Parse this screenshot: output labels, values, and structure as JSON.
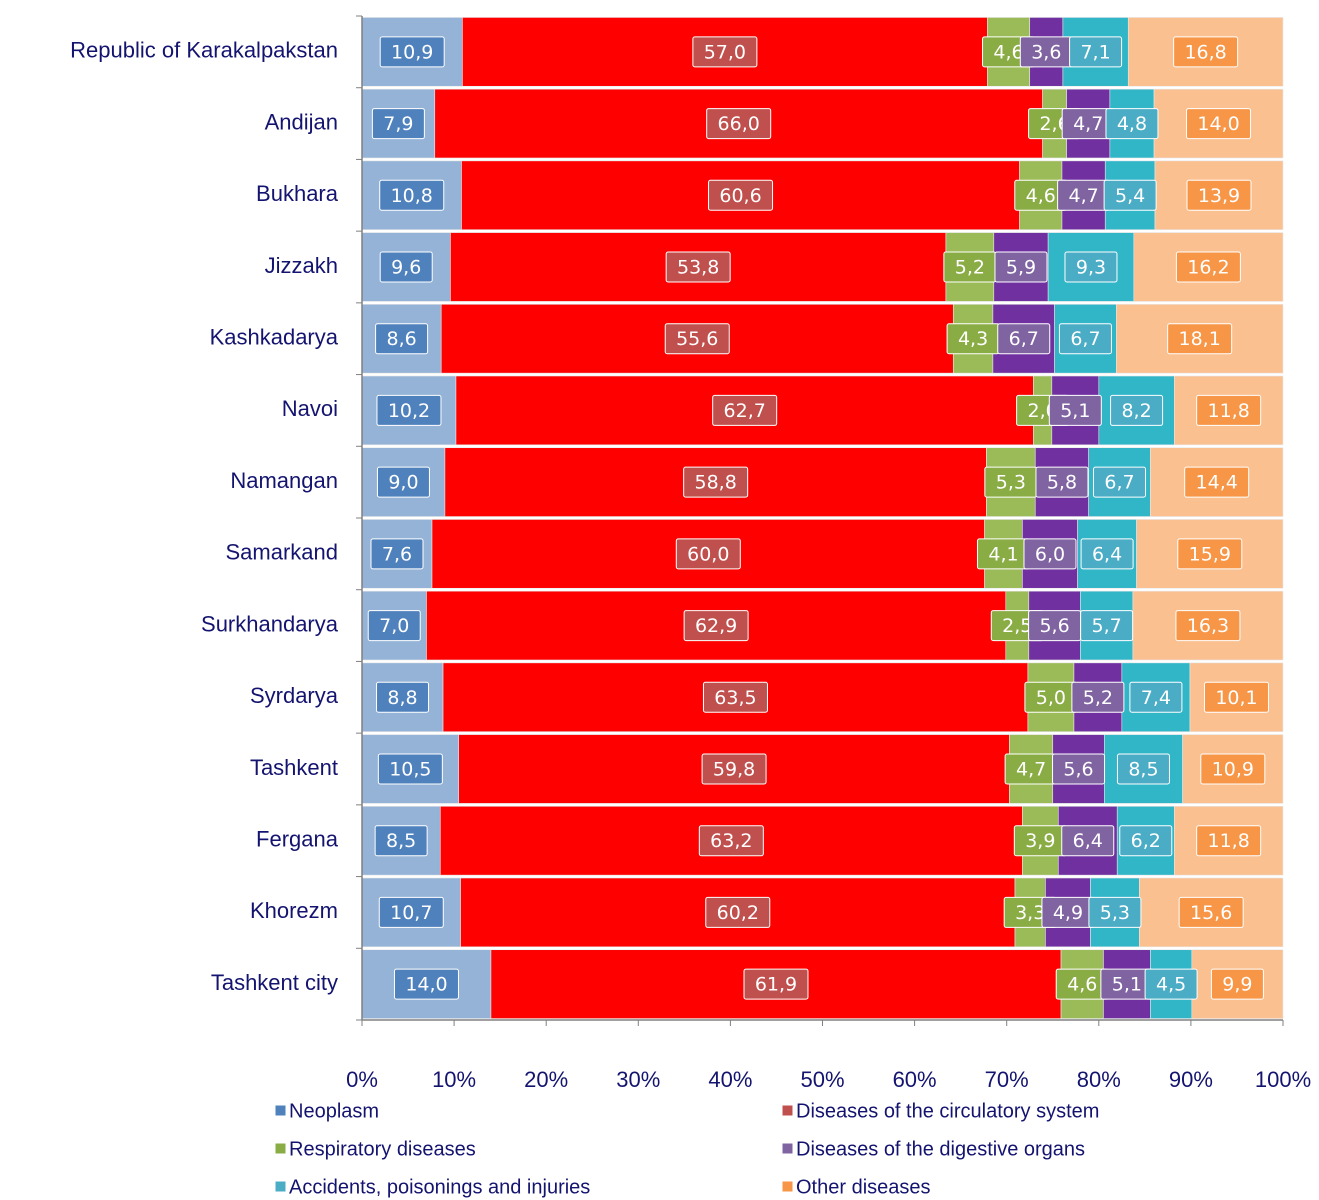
{
  "chart_data": {
    "type": "stacked_barh",
    "categories": [
      "Republic of Karakalpakstan",
      "Andijan",
      "Bukhara",
      "Jizzakh",
      "Kashkadarya",
      "Navoi",
      "Namangan",
      "Samarkand",
      "Surkhandarya",
      "Syrdarya",
      "Tashkent",
      "Fergana",
      "Khorezm",
      "Tashkent city"
    ],
    "series": [
      {
        "name": "Neoplasm",
        "color": "#95b3d7",
        "label_color": "#4f81bd",
        "values": [
          10.9,
          7.9,
          10.8,
          9.6,
          8.6,
          10.2,
          9.0,
          7.6,
          7.0,
          8.8,
          10.5,
          8.5,
          10.7,
          14.0
        ],
        "value_labels": [
          "10,9",
          "7,9",
          "10,8",
          "9,6",
          "8,6",
          "10,2",
          "9,0",
          "7,6",
          "7,0",
          "8,8",
          "10,5",
          "8,5",
          "10,7",
          "14,0"
        ]
      },
      {
        "name": "Diseases of the circulatory system",
        "color": "#ff0000",
        "label_color": "#c0504d",
        "values": [
          57.0,
          66.0,
          60.6,
          53.8,
          55.6,
          62.7,
          58.8,
          60.0,
          62.9,
          63.5,
          59.8,
          63.2,
          60.2,
          61.9
        ],
        "value_labels": [
          "57,0",
          "66,0",
          "60,6",
          "53,8",
          "55,6",
          "62,7",
          "58,8",
          "60,0",
          "62,9",
          "63,5",
          "59,8",
          "63,2",
          "60,2",
          "61,9"
        ]
      },
      {
        "name": "Respiratory diseases",
        "color": "#9bbb59",
        "label_color": "#8aac45",
        "values": [
          4.6,
          2.6,
          4.6,
          5.2,
          4.3,
          2.0,
          5.3,
          4.1,
          2.5,
          5.0,
          4.7,
          3.9,
          3.3,
          4.6
        ],
        "value_labels": [
          "4,6",
          "2,6",
          "4,6",
          "5,2",
          "4,3",
          "2,0",
          "5,3",
          "4,1",
          "2,5",
          "5,0",
          "4,7",
          "3,9",
          "3,3",
          "4,6"
        ]
      },
      {
        "name": "Diseases of the digestive organs",
        "color": "#7030a0",
        "label_color": "#8064a2",
        "values": [
          3.6,
          4.7,
          4.7,
          5.9,
          6.7,
          5.1,
          5.8,
          6.0,
          5.6,
          5.2,
          5.6,
          6.4,
          4.9,
          5.1
        ],
        "value_labels": [
          "3,6",
          "4,7",
          "4,7",
          "5,9",
          "6,7",
          "5,1",
          "5,8",
          "6,0",
          "5,6",
          "5,2",
          "5,6",
          "6,4",
          "4,9",
          "5,1"
        ]
      },
      {
        "name": "Accidents, poisonings and injuries",
        "color": "#31b6c8",
        "label_color": "#4bacc6",
        "values": [
          7.1,
          4.8,
          5.4,
          9.3,
          6.7,
          8.2,
          6.7,
          6.4,
          5.7,
          7.4,
          8.5,
          6.2,
          5.3,
          4.5
        ],
        "value_labels": [
          "7,1",
          "4,8",
          "5,4",
          "9,3",
          "6,7",
          "8,2",
          "6,7",
          "6,4",
          "5,7",
          "7,4",
          "8,5",
          "6,2",
          "5,3",
          "4,5"
        ]
      },
      {
        "name": "Other diseases",
        "color": "#fac090",
        "label_color": "#f79646",
        "values": [
          16.8,
          14.0,
          13.9,
          16.2,
          18.1,
          11.8,
          14.4,
          15.9,
          16.3,
          10.1,
          10.9,
          11.8,
          15.6,
          9.9
        ],
        "value_labels": [
          "16,8",
          "14,0",
          "13,9",
          "16,2",
          "18,1",
          "11,8",
          "14,4",
          "15,9",
          "16,3",
          "10,1",
          "10,9",
          "11,8",
          "15,6",
          "9,9"
        ]
      }
    ],
    "xlim": [
      0,
      100
    ],
    "xticks": [
      {
        "value": 0,
        "label": "0%"
      },
      {
        "value": 10,
        "label": "10%"
      },
      {
        "value": 20,
        "label": "20%"
      },
      {
        "value": 30,
        "label": "30%"
      },
      {
        "value": 40,
        "label": "40%"
      },
      {
        "value": 50,
        "label": "50%"
      },
      {
        "value": 60,
        "label": "60%"
      },
      {
        "value": 70,
        "label": "70%"
      },
      {
        "value": 80,
        "label": "80%"
      },
      {
        "value": 90,
        "label": "90%"
      },
      {
        "value": 100,
        "label": "100%"
      }
    ],
    "legend": "bottom"
  }
}
